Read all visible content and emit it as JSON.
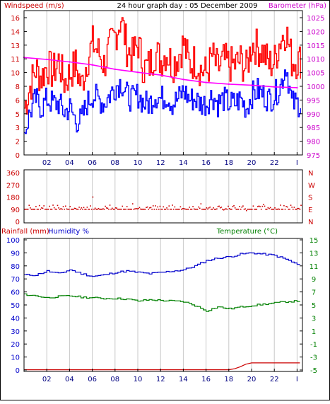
{
  "header": {
    "left_label": "Windspeed (m/s)",
    "title": "24 hour graph day : 05 December 2009",
    "right_label": "Barometer (hPa)"
  },
  "colors": {
    "wind_gust": "#ff0000",
    "wind_avg": "#0000ff",
    "barometer": "#ff00ff",
    "direction": "#cc0000",
    "rainfall": "#cc0000",
    "humidity": "#0000cc",
    "temperature": "#008000",
    "grid": "#c8c8c8",
    "frame": "#000000"
  },
  "chart_data": [
    {
      "type": "line",
      "name": "wind-and-barometer",
      "x_ticks": [
        "02",
        "04",
        "06",
        "08",
        "10",
        "12",
        "14",
        "16",
        "18",
        "20",
        "22",
        "I"
      ],
      "y_left": {
        "label": "Windspeed (m/s)",
        "ticks": [
          "0",
          "2",
          "3",
          "5",
          "6",
          "8",
          "10",
          "11",
          "13",
          "14",
          "16"
        ],
        "ylim": [
          0,
          16
        ]
      },
      "y_right": {
        "label": "Barometer (hPa)",
        "ticks": [
          "975",
          "980",
          "985",
          "990",
          "995",
          "1000",
          "1005",
          "1010",
          "1015",
          "1020",
          "1025"
        ],
        "ylim": [
          975,
          1025
        ]
      },
      "grid": true,
      "series": [
        {
          "key": "gust",
          "x_hours": [
            0.0,
            0.5,
            1.0,
            1.5,
            2.0,
            2.5,
            3.0,
            3.5,
            4.0,
            4.5,
            5.0,
            5.5,
            6.0,
            6.5,
            7.0,
            7.5,
            8.0,
            8.5,
            9.0,
            9.5,
            10.0,
            10.5,
            11.0,
            11.5,
            12.0,
            12.5,
            13.0,
            13.5,
            14.0,
            14.5,
            15.0,
            15.5,
            16.0,
            16.5,
            17.0,
            17.5,
            18.0,
            18.5,
            19.0,
            19.5,
            20.0,
            20.5,
            21.0,
            21.5,
            22.0,
            22.5,
            23.0,
            23.5
          ],
          "values": [
            5.5,
            8.0,
            10.0,
            9.0,
            10.5,
            9.5,
            11.0,
            8.5,
            9.5,
            10.5,
            8.0,
            11.0,
            13.0,
            12.0,
            10.5,
            12.5,
            14.0,
            16.0,
            12.5,
            11.5,
            13.0,
            10.0,
            10.5,
            12.0,
            11.0,
            12.0,
            10.5,
            11.5,
            13.0,
            10.5,
            11.0,
            10.0,
            9.5,
            11.5,
            10.0,
            11.0,
            10.5,
            10.5,
            11.0,
            10.0,
            13.0,
            12.5,
            12.0,
            10.5,
            11.0,
            13.5,
            14.5,
            11.0
          ]
        },
        {
          "key": "average",
          "x_hours": [
            0.0,
            0.5,
            1.0,
            1.5,
            2.0,
            2.5,
            3.0,
            3.5,
            4.0,
            4.5,
            5.0,
            5.5,
            6.0,
            6.5,
            7.0,
            7.5,
            8.0,
            8.5,
            9.0,
            9.5,
            10.0,
            10.5,
            11.0,
            11.5,
            12.0,
            12.5,
            13.0,
            13.5,
            14.0,
            14.5,
            15.0,
            15.5,
            16.0,
            16.5,
            17.0,
            17.5,
            18.0,
            18.5,
            19.0,
            19.5,
            20.0,
            20.5,
            21.0,
            21.5,
            22.0,
            22.5,
            23.0,
            23.5
          ],
          "values": [
            2.5,
            5.0,
            6.5,
            5.5,
            6.5,
            6.0,
            6.0,
            5.0,
            5.5,
            4.0,
            4.0,
            6.0,
            7.0,
            6.5,
            6.0,
            7.0,
            8.0,
            8.5,
            7.0,
            6.5,
            7.0,
            6.0,
            6.0,
            7.0,
            6.5,
            7.0,
            6.0,
            6.5,
            7.5,
            6.5,
            6.5,
            6.0,
            6.0,
            7.0,
            6.0,
            6.5,
            6.0,
            6.0,
            6.5,
            5.5,
            7.0,
            7.5,
            7.0,
            6.5,
            7.0,
            8.0,
            10.5,
            6.0
          ]
        },
        {
          "key": "barometer",
          "x_hours": [
            0,
            2,
            4,
            6,
            8,
            10,
            12,
            14,
            16,
            18,
            20,
            22,
            24
          ],
          "values": [
            1010.5,
            1009.8,
            1008.9,
            1007.8,
            1006.2,
            1005.1,
            1004.1,
            1002.5,
            1001.4,
            1000.8,
            1000.4,
            999.8,
            999.5
          ]
        }
      ]
    },
    {
      "type": "scatter",
      "name": "wind-direction",
      "y_left_ticks": [
        "0",
        "90",
        "180",
        "270",
        "360"
      ],
      "y_right_ticks": [
        "N",
        "E",
        "S",
        "W",
        "N"
      ],
      "ylim": [
        0,
        360
      ],
      "points_deg": [
        90.0,
        100.0,
        110.0,
        100.0,
        90.0,
        120.0,
        100.0,
        90.0,
        110.0,
        95.0,
        100.0,
        105.0,
        180.0,
        95.0,
        90.0,
        120.0,
        100.0,
        90.0,
        110.0,
        130.0,
        95.0,
        90.0,
        100.0,
        115.0,
        90.0,
        100.0,
        120.0,
        90.0,
        95.0,
        105.0,
        90.0,
        130.0,
        100.0,
        90.0,
        110.0,
        85.0,
        95.0,
        100.0,
        90.0,
        80.0,
        90.0,
        110.0,
        125.0,
        95.0,
        100.0,
        120.0,
        110.0,
        105.0
      ]
    },
    {
      "type": "line",
      "name": "rain-humidity-temperature",
      "y_left": {
        "label_rain": "Rainfall (mm)",
        "label_humidity": "Humidity %",
        "ticks": [
          "0",
          "10",
          "20",
          "30",
          "40",
          "50",
          "60",
          "70",
          "80",
          "90",
          "100"
        ],
        "ylim": [
          0,
          100
        ]
      },
      "y_right": {
        "label": "Temperature (°C)",
        "ticks": [
          "-5",
          "-3",
          "-1",
          "1",
          "3",
          "5",
          "7",
          "9",
          "11",
          "13",
          "15"
        ],
        "ylim": [
          -5,
          15
        ]
      },
      "grid": true,
      "series": [
        {
          "key": "humidity",
          "x_hours": [
            0,
            1,
            2,
            3,
            4,
            5,
            6,
            7,
            8,
            9,
            10,
            11,
            12,
            13,
            14,
            15,
            16,
            17,
            18,
            19,
            20,
            21,
            22,
            23,
            24
          ],
          "values": [
            73,
            73,
            76,
            74,
            77,
            74,
            72,
            73,
            75,
            76,
            75,
            74,
            75,
            76,
            77,
            80,
            84,
            86,
            87,
            89,
            90,
            89,
            88,
            85,
            81
          ]
        },
        {
          "key": "temperature",
          "x_hours": [
            0,
            1,
            2,
            3,
            4,
            5,
            6,
            7,
            8,
            9,
            10,
            11,
            12,
            13,
            14,
            15,
            16,
            17,
            18,
            19,
            20,
            21,
            22,
            23,
            24
          ],
          "values": [
            6.6,
            6.4,
            6.1,
            6.3,
            6.4,
            6.2,
            6.1,
            6.0,
            6.0,
            5.9,
            5.6,
            5.8,
            5.7,
            5.6,
            5.5,
            4.9,
            4.1,
            4.7,
            4.4,
            4.7,
            4.9,
            5.1,
            5.3,
            5.5,
            5.6
          ]
        },
        {
          "key": "rainfall",
          "x_hours": [
            0,
            18,
            18.5,
            19,
            19.5,
            20,
            24
          ],
          "values": [
            0.2,
            0.2,
            1.0,
            2.5,
            4.5,
            5.5,
            5.5
          ]
        }
      ]
    }
  ]
}
